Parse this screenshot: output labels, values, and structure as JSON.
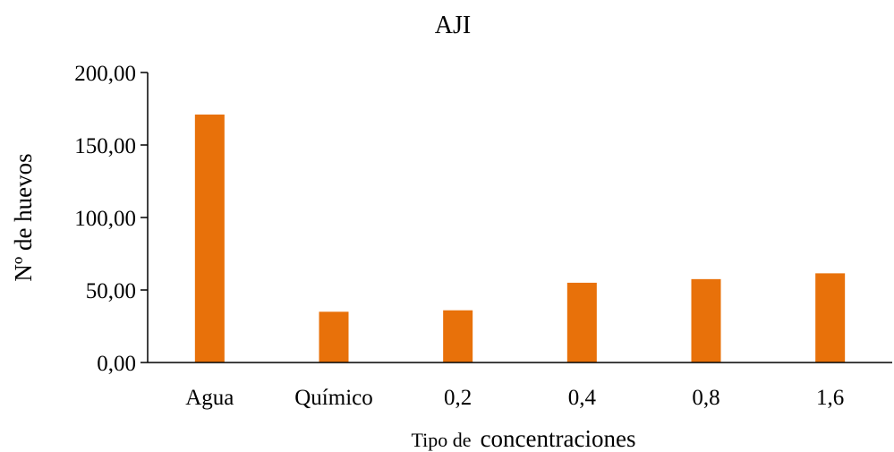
{
  "chart_data": {
    "type": "bar",
    "title": "AJI",
    "categories": [
      "Agua",
      "Químico",
      "0,2",
      "0,4",
      "0,8",
      "1,6"
    ],
    "values": [
      171,
      35,
      36,
      55,
      57.5,
      61.5
    ],
    "ylabel": "Nº de huevos",
    "xlabel_prefix": "Tipo de",
    "xlabel_main": "concentraciones",
    "yticks": [
      "0,00",
      "50,00",
      "100,00",
      "150,00",
      "200,00"
    ],
    "ytick_values": [
      0,
      50,
      100,
      150,
      200
    ],
    "ylim": [
      0,
      200
    ],
    "bar_color": "#e8710a",
    "grid": false,
    "legend": "none"
  }
}
